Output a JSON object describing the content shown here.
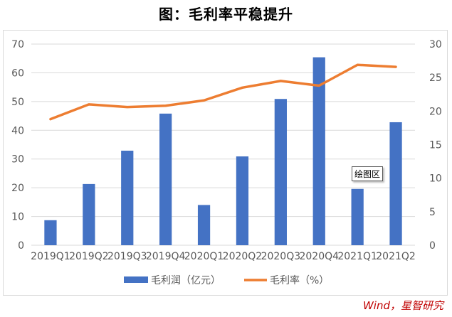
{
  "title": "图：毛利率平稳提升",
  "source": "Wind，星智研究",
  "tooltip": "绘图区",
  "colors": {
    "bar": "#4472c4",
    "line": "#ed7d31",
    "grid": "#d9d9d9",
    "axis": "#595959"
  },
  "chart_data": {
    "type": "bar",
    "categories": [
      "2019Q1",
      "2019Q2",
      "2019Q3",
      "2019Q4",
      "2020Q1",
      "2020Q2",
      "2020Q3",
      "2020Q4",
      "2021Q1",
      "2021Q2"
    ],
    "series": [
      {
        "name": "毛利润（亿元）",
        "type": "bar",
        "axis": "left",
        "values": [
          8.7,
          21.3,
          32.9,
          45.8,
          14.0,
          30.9,
          50.9,
          65.4,
          19.6,
          42.8
        ]
      },
      {
        "name": "毛利率（%）",
        "type": "line",
        "axis": "right",
        "values": [
          18.8,
          21.0,
          20.6,
          20.8,
          21.6,
          23.5,
          24.5,
          23.8,
          26.9,
          26.6
        ]
      }
    ],
    "ylim": [
      0,
      70
    ],
    "yticks": [
      0,
      10,
      20,
      30,
      40,
      50,
      60,
      70
    ],
    "y2lim": [
      0,
      30
    ],
    "y2ticks": [
      0,
      5,
      10,
      15,
      20,
      25,
      30
    ],
    "grid": true,
    "legend_position": "bottom"
  }
}
